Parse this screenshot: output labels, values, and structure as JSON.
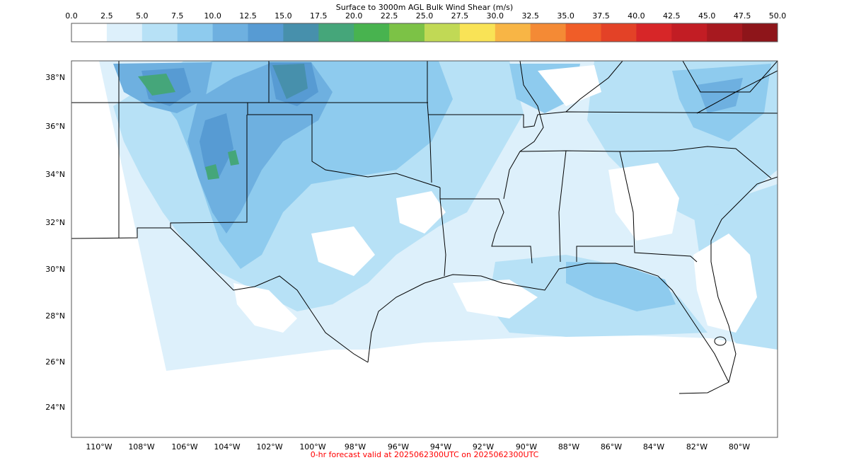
{
  "colorbar": {
    "title": "Surface to 3000m AGL Bulk Wind Shear (m/s)",
    "levels": [
      "0.0",
      "2.5",
      "5.0",
      "7.5",
      "10.0",
      "12.5",
      "15.0",
      "17.5",
      "20.0",
      "22.5",
      "25.0",
      "27.5",
      "30.0",
      "32.5",
      "35.0",
      "37.5",
      "40.0",
      "42.5",
      "45.0",
      "47.5",
      "50.0"
    ],
    "colors": [
      "#ffffff",
      "#ddf0fb",
      "#b7e1f6",
      "#8ecbee",
      "#6eb0e0",
      "#579bd3",
      "#4790ac",
      "#45a67a",
      "#48b34f",
      "#7cc246",
      "#c1d955",
      "#f9e356",
      "#f8b545",
      "#f48a35",
      "#f05d28",
      "#e34227",
      "#d72628",
      "#c21d24",
      "#a7191f",
      "#8e151a"
    ]
  },
  "map": {
    "lat_labels": [
      "38°N",
      "36°N",
      "34°N",
      "32°N",
      "30°N",
      "28°N",
      "26°N",
      "24°N"
    ],
    "lon_labels": [
      "110°W",
      "108°W",
      "106°W",
      "104°W",
      "102°W",
      "100°W",
      "98°W",
      "96°W",
      "94°W",
      "92°W",
      "90°W",
      "88°W",
      "86°W",
      "84°W",
      "82°W",
      "80°W"
    ]
  },
  "footer": {
    "text": "0-hr forecast valid at 2025062300UTC on 2025062300UTC"
  }
}
